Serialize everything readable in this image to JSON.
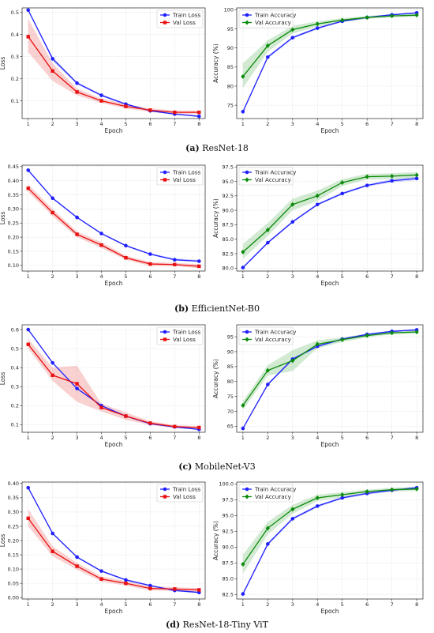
{
  "chart_data": [
    {
      "type": "line",
      "panel": "a",
      "metric": "loss",
      "xlabel": "Epoch",
      "ylabel": "Loss",
      "x": [
        1,
        2,
        3,
        4,
        5,
        6,
        7,
        8
      ],
      "ylim": [
        0.02,
        0.52
      ],
      "yticks": [
        0.1,
        0.2,
        0.3,
        0.4,
        0.5
      ],
      "ytick_labels": [
        "0.1",
        "0.2",
        "0.3",
        "0.4",
        "0.5"
      ],
      "grid": true,
      "legend": "top-right",
      "series": [
        {
          "name": "Train Loss",
          "color": "#1f1fff",
          "marker": "circle",
          "values": [
            0.51,
            0.29,
            0.18,
            0.125,
            0.085,
            0.055,
            0.04,
            0.03
          ],
          "band": [
            [
              0.51,
              0.51
            ],
            [
              0.28,
              0.3
            ],
            [
              0.175,
              0.185
            ],
            [
              0.12,
              0.13
            ],
            [
              0.08,
              0.09
            ],
            [
              0.052,
              0.058
            ],
            [
              0.037,
              0.043
            ],
            [
              0.027,
              0.033
            ]
          ]
        },
        {
          "name": "Val Loss",
          "color": "#e81010",
          "marker": "square",
          "values": [
            0.39,
            0.235,
            0.14,
            0.1,
            0.075,
            0.058,
            0.048,
            0.048
          ],
          "band": [
            [
              0.32,
              0.47
            ],
            [
              0.19,
              0.27
            ],
            [
              0.125,
              0.155
            ],
            [
              0.09,
              0.11
            ],
            [
              0.065,
              0.085
            ],
            [
              0.05,
              0.066
            ],
            [
              0.04,
              0.056
            ],
            [
              0.04,
              0.056
            ]
          ]
        }
      ]
    },
    {
      "type": "line",
      "panel": "a",
      "metric": "accuracy",
      "xlabel": "Epoch",
      "ylabel": "Accuracy (%)",
      "x": [
        1,
        2,
        3,
        4,
        5,
        6,
        7,
        8
      ],
      "ylim": [
        71.5,
        100.5
      ],
      "yticks": [
        75,
        80,
        85,
        90,
        95,
        100
      ],
      "ytick_labels": [
        "75",
        "80",
        "85",
        "90",
        "95",
        "100"
      ],
      "grid": true,
      "legend": "top-left",
      "series": [
        {
          "name": "Train Accuracy",
          "color": "#1f1fff",
          "marker": "circle",
          "values": [
            73.3,
            87.6,
            92.7,
            95.2,
            97.0,
            98.0,
            98.7,
            99.2
          ],
          "band": [
            [
              73.0,
              73.6
            ],
            [
              87.2,
              88.0
            ],
            [
              92.4,
              93.0
            ],
            [
              94.9,
              95.5
            ],
            [
              96.8,
              97.2
            ],
            [
              97.8,
              98.2
            ],
            [
              98.5,
              98.9
            ],
            [
              99.0,
              99.4
            ]
          ]
        },
        {
          "name": "Val Accuracy",
          "color": "#0a8a0a",
          "marker": "diamond",
          "values": [
            82.5,
            90.6,
            94.8,
            96.3,
            97.3,
            98.0,
            98.4,
            98.6
          ],
          "band": [
            [
              79.5,
              86.0
            ],
            [
              89.0,
              92.0
            ],
            [
              93.8,
              95.8
            ],
            [
              95.6,
              97.0
            ],
            [
              96.8,
              97.8
            ],
            [
              97.6,
              98.4
            ],
            [
              98.0,
              98.8
            ],
            [
              98.2,
              99.0
            ]
          ]
        }
      ]
    },
    {
      "type": "line",
      "panel": "b",
      "metric": "loss",
      "xlabel": "Epoch",
      "ylabel": "Loss",
      "x": [
        1,
        2,
        3,
        4,
        5,
        6,
        7,
        8
      ],
      "ylim": [
        0.08,
        0.455
      ],
      "yticks": [
        0.1,
        0.15,
        0.2,
        0.25,
        0.3,
        0.35,
        0.4,
        0.45
      ],
      "ytick_labels": [
        "0.10",
        "0.15",
        "0.20",
        "0.25",
        "0.30",
        "0.35",
        "0.40",
        "0.45"
      ],
      "grid": true,
      "legend": "top-right",
      "series": [
        {
          "name": "Train Loss",
          "color": "#1f1fff",
          "marker": "circle",
          "values": [
            0.437,
            0.338,
            0.27,
            0.213,
            0.17,
            0.14,
            0.12,
            0.115
          ],
          "band": [
            [
              0.435,
              0.44
            ],
            [
              0.335,
              0.341
            ],
            [
              0.267,
              0.273
            ],
            [
              0.21,
              0.216
            ],
            [
              0.167,
              0.173
            ],
            [
              0.137,
              0.143
            ],
            [
              0.117,
              0.125
            ],
            [
              0.112,
              0.12
            ]
          ]
        },
        {
          "name": "Val Loss",
          "color": "#e81010",
          "marker": "square",
          "values": [
            0.373,
            0.287,
            0.21,
            0.172,
            0.127,
            0.105,
            0.103,
            0.097
          ],
          "band": [
            [
              0.36,
              0.387
            ],
            [
              0.275,
              0.3
            ],
            [
              0.2,
              0.22
            ],
            [
              0.162,
              0.182
            ],
            [
              0.12,
              0.135
            ],
            [
              0.098,
              0.112
            ],
            [
              0.097,
              0.109
            ],
            [
              0.09,
              0.104
            ]
          ]
        }
      ]
    },
    {
      "type": "line",
      "panel": "b",
      "metric": "accuracy",
      "xlabel": "Epoch",
      "ylabel": "Accuracy (%)",
      "x": [
        1,
        2,
        3,
        4,
        5,
        6,
        7,
        8
      ],
      "ylim": [
        79.5,
        97.8
      ],
      "yticks": [
        80.0,
        82.5,
        85.0,
        87.5,
        90.0,
        92.5,
        95.0,
        97.5
      ],
      "ytick_labels": [
        "80.0",
        "82.5",
        "85.0",
        "87.5",
        "90.0",
        "92.5",
        "95.0",
        "97.5"
      ],
      "grid": true,
      "legend": "top-left",
      "series": [
        {
          "name": "Train Accuracy",
          "color": "#1f1fff",
          "marker": "circle",
          "values": [
            80.1,
            84.4,
            88.0,
            91.0,
            92.9,
            94.3,
            95.1,
            95.5
          ],
          "band": [
            [
              80.0,
              80.2
            ],
            [
              84.2,
              84.6
            ],
            [
              87.8,
              88.2
            ],
            [
              90.8,
              91.2
            ],
            [
              92.7,
              93.1
            ],
            [
              94.1,
              94.5
            ],
            [
              94.8,
              95.4
            ],
            [
              95.2,
              95.8
            ]
          ]
        },
        {
          "name": "Val Accuracy",
          "color": "#0a8a0a",
          "marker": "diamond",
          "values": [
            82.8,
            86.6,
            91.0,
            92.5,
            94.8,
            95.8,
            95.9,
            96.1
          ],
          "band": [
            [
              81.6,
              84.2
            ],
            [
              85.6,
              87.8
            ],
            [
              90.0,
              92.0
            ],
            [
              91.6,
              93.4
            ],
            [
              94.2,
              95.4
            ],
            [
              95.3,
              96.3
            ],
            [
              95.4,
              96.4
            ],
            [
              95.6,
              96.6
            ]
          ]
        }
      ]
    },
    {
      "type": "line",
      "panel": "c",
      "metric": "loss",
      "xlabel": "Epoch",
      "ylabel": "Loss",
      "x": [
        1,
        2,
        3,
        4,
        5,
        6,
        7,
        8
      ],
      "ylim": [
        0.06,
        0.625
      ],
      "yticks": [
        0.1,
        0.2,
        0.3,
        0.4,
        0.5,
        0.6
      ],
      "ytick_labels": [
        "0.1",
        "0.2",
        "0.3",
        "0.4",
        "0.5",
        "0.6"
      ],
      "grid": true,
      "legend": "top-right",
      "series": [
        {
          "name": "Train Loss",
          "color": "#1f1fff",
          "marker": "circle",
          "values": [
            0.6,
            0.425,
            0.29,
            0.2,
            0.145,
            0.105,
            0.088,
            0.075
          ],
          "band": [
            [
              0.598,
              0.602
            ],
            [
              0.42,
              0.43
            ],
            [
              0.285,
              0.295
            ],
            [
              0.196,
              0.204
            ],
            [
              0.141,
              0.149
            ],
            [
              0.101,
              0.109
            ],
            [
              0.084,
              0.092
            ],
            [
              0.071,
              0.079
            ]
          ]
        },
        {
          "name": "Val Loss",
          "color": "#e81010",
          "marker": "square",
          "values": [
            0.522,
            0.36,
            0.315,
            0.19,
            0.145,
            0.108,
            0.09,
            0.085
          ],
          "band": [
            [
              0.5,
              0.55
            ],
            [
              0.33,
              0.4
            ],
            [
              0.22,
              0.41
            ],
            [
              0.17,
              0.21
            ],
            [
              0.125,
              0.165
            ],
            [
              0.098,
              0.118
            ],
            [
              0.082,
              0.098
            ],
            [
              0.078,
              0.092
            ]
          ]
        }
      ]
    },
    {
      "type": "line",
      "panel": "c",
      "metric": "accuracy",
      "xlabel": "Epoch",
      "ylabel": "Accuracy (%)",
      "x": [
        1,
        2,
        3,
        4,
        5,
        6,
        7,
        8
      ],
      "ylim": [
        63.0,
        99.0
      ],
      "yticks": [
        65,
        70,
        75,
        80,
        85,
        90,
        95
      ],
      "ytick_labels": [
        "65",
        "70",
        "75",
        "80",
        "85",
        "90",
        "95"
      ],
      "grid": true,
      "legend": "top-left",
      "series": [
        {
          "name": "Train Accuracy",
          "color": "#1f1fff",
          "marker": "circle",
          "values": [
            64.3,
            79.0,
            87.5,
            91.8,
            94.2,
            95.8,
            96.8,
            97.3
          ],
          "band": [
            [
              64.1,
              64.5
            ],
            [
              78.6,
              79.4
            ],
            [
              87.1,
              87.9
            ],
            [
              91.4,
              92.2
            ],
            [
              93.9,
              94.5
            ],
            [
              95.5,
              96.1
            ],
            [
              96.5,
              97.1
            ],
            [
              97.0,
              97.6
            ]
          ]
        },
        {
          "name": "Val Accuracy",
          "color": "#0a8a0a",
          "marker": "diamond",
          "values": [
            72.0,
            83.7,
            87.0,
            92.5,
            94.0,
            95.4,
            96.3,
            96.6
          ],
          "band": [
            [
              70.5,
              73.5
            ],
            [
              82.0,
              85.5
            ],
            [
              83.5,
              90.5
            ],
            [
              91.2,
              93.8
            ],
            [
              93.2,
              94.8
            ],
            [
              94.8,
              96.0
            ],
            [
              95.8,
              96.8
            ],
            [
              96.1,
              97.1
            ]
          ]
        }
      ]
    },
    {
      "type": "line",
      "panel": "d",
      "metric": "loss",
      "xlabel": "Epoch",
      "ylabel": "Loss",
      "x": [
        1,
        2,
        3,
        4,
        5,
        6,
        7,
        8
      ],
      "ylim": [
        -0.005,
        0.405
      ],
      "yticks": [
        0.0,
        0.05,
        0.1,
        0.15,
        0.2,
        0.25,
        0.3,
        0.35,
        0.4
      ],
      "ytick_labels": [
        "0.00",
        "0.05",
        "0.10",
        "0.15",
        "0.20",
        "0.25",
        "0.30",
        "0.35",
        "0.40"
      ],
      "grid": true,
      "legend": "top-right",
      "series": [
        {
          "name": "Train Loss",
          "color": "#1f1fff",
          "marker": "circle",
          "values": [
            0.385,
            0.225,
            0.142,
            0.093,
            0.062,
            0.042,
            0.025,
            0.018
          ],
          "band": [
            [
              0.383,
              0.387
            ],
            [
              0.222,
              0.228
            ],
            [
              0.139,
              0.145
            ],
            [
              0.09,
              0.096
            ],
            [
              0.059,
              0.065
            ],
            [
              0.039,
              0.045
            ],
            [
              0.022,
              0.028
            ],
            [
              0.015,
              0.021
            ]
          ]
        },
        {
          "name": "Val Loss",
          "color": "#e81010",
          "marker": "square",
          "values": [
            0.278,
            0.162,
            0.11,
            0.065,
            0.05,
            0.032,
            0.03,
            0.027
          ],
          "band": [
            [
              0.25,
              0.31
            ],
            [
              0.145,
              0.18
            ],
            [
              0.098,
              0.122
            ],
            [
              0.056,
              0.074
            ],
            [
              0.042,
              0.058
            ],
            [
              0.025,
              0.039
            ],
            [
              0.023,
              0.037
            ],
            [
              0.021,
              0.033
            ]
          ]
        }
      ]
    },
    {
      "type": "line",
      "panel": "d",
      "metric": "accuracy",
      "xlabel": "Epoch",
      "ylabel": "Accuracy (%)",
      "x": [
        1,
        2,
        3,
        4,
        5,
        6,
        7,
        8
      ],
      "ylim": [
        81.8,
        100.3
      ],
      "yticks": [
        82.5,
        85.0,
        87.5,
        90.0,
        92.5,
        95.0,
        97.5,
        100.0
      ],
      "ytick_labels": [
        "82.5",
        "85.0",
        "87.5",
        "90.0",
        "92.5",
        "95.0",
        "97.5",
        "100.0"
      ],
      "grid": true,
      "legend": "top-left",
      "series": [
        {
          "name": "Train Accuracy",
          "color": "#1f1fff",
          "marker": "circle",
          "values": [
            82.6,
            90.5,
            94.5,
            96.5,
            97.8,
            98.5,
            99.0,
            99.4
          ],
          "band": [
            [
              82.5,
              82.7
            ],
            [
              90.3,
              90.7
            ],
            [
              94.3,
              94.7
            ],
            [
              96.3,
              96.7
            ],
            [
              97.6,
              98.0
            ],
            [
              98.3,
              98.7
            ],
            [
              98.8,
              99.2
            ],
            [
              99.2,
              99.6
            ]
          ]
        },
        {
          "name": "Val Accuracy",
          "color": "#0a8a0a",
          "marker": "diamond",
          "values": [
            87.3,
            93.0,
            96.0,
            97.8,
            98.3,
            98.8,
            99.1,
            99.2
          ],
          "band": [
            [
              85.8,
              88.8
            ],
            [
              92.0,
              94.0
            ],
            [
              95.3,
              96.7
            ],
            [
              97.3,
              98.3
            ],
            [
              97.9,
              98.7
            ],
            [
              98.5,
              99.1
            ],
            [
              98.8,
              99.4
            ],
            [
              98.9,
              99.5
            ]
          ]
        }
      ]
    }
  ],
  "captions": [
    {
      "letter": "(a)",
      "text": " ResNet-18"
    },
    {
      "letter": "(b)",
      "text": " EfficientNet-B0"
    },
    {
      "letter": "(c)",
      "text": " MobileNet-V3"
    },
    {
      "letter": "(d)",
      "text": " ResNet-18-Tiny ViT"
    }
  ]
}
